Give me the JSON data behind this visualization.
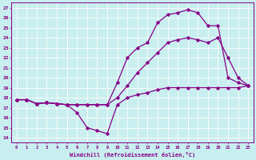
{
  "xlabel": "Windchill (Refroidissement éolien,°C)",
  "background_color": "#c8eef0",
  "grid_color": "#ffffff",
  "line_color": "#880088",
  "ylim": [
    13.5,
    27.5
  ],
  "xlim": [
    -0.5,
    23.5
  ],
  "yticks": [
    14,
    15,
    16,
    17,
    18,
    19,
    20,
    21,
    22,
    23,
    24,
    25,
    26,
    27
  ],
  "xticks": [
    0,
    1,
    2,
    3,
    4,
    5,
    6,
    7,
    8,
    9,
    10,
    11,
    12,
    13,
    14,
    15,
    16,
    17,
    18,
    19,
    20,
    21,
    22,
    23
  ],
  "series": [
    {
      "x": [
        0,
        1,
        2,
        3,
        4,
        5,
        6,
        7,
        8,
        9,
        10,
        11,
        12,
        13,
        14,
        15,
        16,
        17,
        18,
        19,
        20,
        21,
        22,
        23
      ],
      "y": [
        17.8,
        17.8,
        17.4,
        17.5,
        17.4,
        17.3,
        16.5,
        15.0,
        14.7,
        14.4,
        17.3,
        18.0,
        18.3,
        18.5,
        18.8,
        19.0,
        19.0,
        19.0,
        19.0,
        19.0,
        19.0,
        19.0,
        19.0,
        19.2
      ],
      "color": "#880088",
      "lw": 0.9,
      "marker": "D",
      "ms": 1.8
    },
    {
      "x": [
        0,
        1,
        2,
        3,
        4,
        5,
        6,
        7,
        8,
        9,
        10,
        11,
        12,
        13,
        14,
        15,
        16,
        17,
        18,
        19,
        20,
        21,
        22,
        23
      ],
      "y": [
        17.8,
        17.8,
        17.4,
        17.5,
        17.4,
        17.3,
        17.3,
        17.3,
        17.3,
        17.3,
        18.0,
        19.2,
        20.5,
        21.5,
        22.5,
        23.5,
        23.8,
        24.0,
        23.8,
        23.5,
        24.0,
        22.0,
        20.0,
        19.2
      ],
      "color": "#880088",
      "lw": 0.9,
      "marker": "D",
      "ms": 1.8
    },
    {
      "x": [
        0,
        1,
        2,
        3,
        4,
        5,
        6,
        7,
        8,
        9,
        10,
        11,
        12,
        13,
        14,
        15,
        16,
        17,
        18,
        19,
        20,
        21,
        22,
        23
      ],
      "y": [
        17.8,
        17.8,
        17.4,
        17.5,
        17.4,
        17.3,
        17.3,
        17.3,
        17.3,
        17.3,
        19.5,
        22.0,
        23.0,
        23.5,
        25.5,
        26.3,
        26.5,
        26.8,
        26.5,
        25.2,
        25.2,
        20.0,
        19.5,
        19.2
      ],
      "color": "#880088",
      "lw": 0.9,
      "marker": "D",
      "ms": 1.8
    }
  ]
}
